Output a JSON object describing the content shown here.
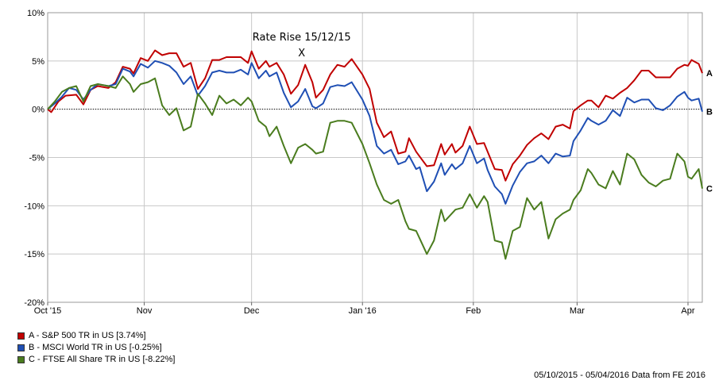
{
  "chart_data": {
    "type": "line",
    "ylim": [
      -20,
      10
    ],
    "yticks": [
      10,
      5,
      0,
      -5,
      -10,
      -15,
      -20
    ],
    "ytick_labels": [
      "10%",
      "5%",
      "0%",
      "-5%",
      "-10%",
      "-15%",
      "-20%"
    ],
    "xlim": [
      0,
      183
    ],
    "xticks": [
      {
        "label": "Oct '15",
        "t": 0
      },
      {
        "label": "Nov",
        "t": 27
      },
      {
        "label": "Dec",
        "t": 57
      },
      {
        "label": "Jan '16",
        "t": 88
      },
      {
        "label": "Feb",
        "t": 119
      },
      {
        "label": "Mar",
        "t": 148
      },
      {
        "label": "Apr",
        "t": 179
      }
    ],
    "grid": true,
    "zero_line": "dotted",
    "annotation": {
      "text": "Rate Rise 15/12/15",
      "marker": "X",
      "t": 71
    },
    "series": [
      {
        "name": "A - S&P 500 TR in US [3.74%]",
        "end_label": "A",
        "color": "#c00000",
        "points": [
          [
            0,
            0
          ],
          [
            1,
            -0.3
          ],
          [
            3,
            0.8
          ],
          [
            5,
            1.4
          ],
          [
            8,
            1.5
          ],
          [
            10,
            0.5
          ],
          [
            12,
            2.0
          ],
          [
            14,
            2.4
          ],
          [
            17,
            2.2
          ],
          [
            19,
            2.8
          ],
          [
            21,
            4.4
          ],
          [
            23,
            4.2
          ],
          [
            24,
            3.7
          ],
          [
            26,
            5.3
          ],
          [
            28,
            5.0
          ],
          [
            30,
            6.1
          ],
          [
            32,
            5.6
          ],
          [
            34,
            5.8
          ],
          [
            36,
            5.8
          ],
          [
            38,
            4.4
          ],
          [
            40,
            4.8
          ],
          [
            42,
            2.1
          ],
          [
            44,
            3.2
          ],
          [
            46,
            5.1
          ],
          [
            48,
            5.1
          ],
          [
            50,
            5.4
          ],
          [
            52,
            5.4
          ],
          [
            54,
            5.4
          ],
          [
            56,
            4.8
          ],
          [
            57,
            6.0
          ],
          [
            59,
            4.2
          ],
          [
            61,
            5.0
          ],
          [
            62,
            4.4
          ],
          [
            64,
            4.8
          ],
          [
            66,
            3.6
          ],
          [
            68,
            1.6
          ],
          [
            70,
            2.5
          ],
          [
            72,
            4.6
          ],
          [
            74,
            2.8
          ],
          [
            75,
            1.2
          ],
          [
            77,
            2.0
          ],
          [
            79,
            3.6
          ],
          [
            81,
            4.6
          ],
          [
            83,
            4.4
          ],
          [
            85,
            5.2
          ],
          [
            88,
            3.6
          ],
          [
            90,
            2.1
          ],
          [
            92,
            -1.4
          ],
          [
            94,
            -2.9
          ],
          [
            96,
            -2.3
          ],
          [
            98,
            -4.6
          ],
          [
            100,
            -4.4
          ],
          [
            101,
            -3.0
          ],
          [
            103,
            -4.4
          ],
          [
            104,
            -4.9
          ],
          [
            106,
            -5.9
          ],
          [
            108,
            -5.8
          ],
          [
            110,
            -3.6
          ],
          [
            111,
            -4.7
          ],
          [
            113,
            -3.6
          ],
          [
            114,
            -4.5
          ],
          [
            116,
            -3.8
          ],
          [
            118,
            -1.8
          ],
          [
            120,
            -3.6
          ],
          [
            122,
            -3.5
          ],
          [
            123,
            -4.4
          ],
          [
            125,
            -6.2
          ],
          [
            127,
            -6.3
          ],
          [
            128,
            -7.4
          ],
          [
            130,
            -5.7
          ],
          [
            132,
            -4.8
          ],
          [
            134,
            -3.7
          ],
          [
            136,
            -3.0
          ],
          [
            138,
            -2.5
          ],
          [
            140,
            -3.1
          ],
          [
            142,
            -1.8
          ],
          [
            144,
            -1.6
          ],
          [
            146,
            -2.0
          ],
          [
            147,
            -0.2
          ],
          [
            149,
            0.4
          ],
          [
            151,
            0.9
          ],
          [
            152,
            0.9
          ],
          [
            154,
            0.2
          ],
          [
            156,
            1.4
          ],
          [
            158,
            1.1
          ],
          [
            160,
            1.7
          ],
          [
            162,
            2.2
          ],
          [
            164,
            3.0
          ],
          [
            166,
            4.0
          ],
          [
            168,
            4.0
          ],
          [
            170,
            3.3
          ],
          [
            172,
            3.3
          ],
          [
            174,
            3.3
          ],
          [
            176,
            4.2
          ],
          [
            178,
            4.6
          ],
          [
            179,
            4.5
          ],
          [
            180,
            5.1
          ],
          [
            182,
            4.7
          ],
          [
            183,
            3.74
          ]
        ]
      },
      {
        "name": "B - MSCI World TR in US [-0.25%]",
        "end_label": "B",
        "color": "#1f4fb4",
        "points": [
          [
            0,
            0
          ],
          [
            2,
            0.6
          ],
          [
            4,
            1.3
          ],
          [
            6,
            2.2
          ],
          [
            8,
            2.0
          ],
          [
            10,
            1.0
          ],
          [
            12,
            2.0
          ],
          [
            14,
            2.6
          ],
          [
            17,
            2.4
          ],
          [
            19,
            2.6
          ],
          [
            21,
            4.2
          ],
          [
            23,
            3.9
          ],
          [
            24,
            3.4
          ],
          [
            26,
            4.7
          ],
          [
            28,
            4.3
          ],
          [
            30,
            5.0
          ],
          [
            32,
            4.8
          ],
          [
            34,
            4.5
          ],
          [
            36,
            3.8
          ],
          [
            38,
            2.6
          ],
          [
            40,
            3.4
          ],
          [
            42,
            1.4
          ],
          [
            44,
            2.4
          ],
          [
            46,
            3.8
          ],
          [
            48,
            4.0
          ],
          [
            50,
            3.8
          ],
          [
            52,
            3.8
          ],
          [
            54,
            4.1
          ],
          [
            56,
            3.6
          ],
          [
            57,
            4.8
          ],
          [
            59,
            3.2
          ],
          [
            61,
            4.0
          ],
          [
            62,
            3.4
          ],
          [
            64,
            3.8
          ],
          [
            66,
            1.7
          ],
          [
            68,
            0.2
          ],
          [
            70,
            0.8
          ],
          [
            72,
            2.1
          ],
          [
            74,
            0.3
          ],
          [
            75,
            0.1
          ],
          [
            77,
            0.6
          ],
          [
            79,
            2.3
          ],
          [
            81,
            2.5
          ],
          [
            83,
            2.4
          ],
          [
            85,
            2.8
          ],
          [
            88,
            1.0
          ],
          [
            90,
            -0.7
          ],
          [
            92,
            -3.8
          ],
          [
            94,
            -4.6
          ],
          [
            96,
            -4.2
          ],
          [
            98,
            -5.7
          ],
          [
            100,
            -5.4
          ],
          [
            101,
            -4.8
          ],
          [
            103,
            -6.2
          ],
          [
            104,
            -6.0
          ],
          [
            106,
            -8.5
          ],
          [
            108,
            -7.5
          ],
          [
            110,
            -5.6
          ],
          [
            111,
            -6.8
          ],
          [
            113,
            -5.7
          ],
          [
            114,
            -6.2
          ],
          [
            116,
            -5.6
          ],
          [
            118,
            -3.8
          ],
          [
            120,
            -5.6
          ],
          [
            122,
            -5.1
          ],
          [
            123,
            -6.3
          ],
          [
            125,
            -8.0
          ],
          [
            127,
            -8.8
          ],
          [
            128,
            -9.8
          ],
          [
            130,
            -7.9
          ],
          [
            132,
            -6.5
          ],
          [
            134,
            -5.6
          ],
          [
            136,
            -5.4
          ],
          [
            138,
            -4.8
          ],
          [
            140,
            -5.6
          ],
          [
            142,
            -4.6
          ],
          [
            144,
            -4.9
          ],
          [
            146,
            -4.8
          ],
          [
            147,
            -3.3
          ],
          [
            149,
            -2.2
          ],
          [
            151,
            -0.9
          ],
          [
            152,
            -1.2
          ],
          [
            154,
            -1.6
          ],
          [
            156,
            -1.2
          ],
          [
            158,
            -0.1
          ],
          [
            160,
            -0.7
          ],
          [
            162,
            1.2
          ],
          [
            164,
            0.7
          ],
          [
            166,
            1.0
          ],
          [
            168,
            1.0
          ],
          [
            170,
            0.1
          ],
          [
            172,
            -0.1
          ],
          [
            174,
            0.4
          ],
          [
            176,
            1.3
          ],
          [
            178,
            1.8
          ],
          [
            179,
            1.2
          ],
          [
            180,
            0.9
          ],
          [
            182,
            1.1
          ],
          [
            183,
            -0.25
          ]
        ]
      },
      {
        "name": "C - FTSE All Share TR in US [-8.22%]",
        "end_label": "C",
        "color": "#4a7c1e",
        "points": [
          [
            0,
            0
          ],
          [
            2,
            0.8
          ],
          [
            4,
            1.8
          ],
          [
            6,
            2.2
          ],
          [
            8,
            2.4
          ],
          [
            10,
            0.8
          ],
          [
            12,
            2.4
          ],
          [
            14,
            2.6
          ],
          [
            17,
            2.4
          ],
          [
            19,
            2.2
          ],
          [
            21,
            3.4
          ],
          [
            23,
            2.6
          ],
          [
            24,
            1.8
          ],
          [
            26,
            2.6
          ],
          [
            28,
            2.8
          ],
          [
            30,
            3.2
          ],
          [
            32,
            0.4
          ],
          [
            34,
            -0.6
          ],
          [
            36,
            0.1
          ],
          [
            38,
            -2.2
          ],
          [
            40,
            -1.8
          ],
          [
            42,
            1.6
          ],
          [
            44,
            0.6
          ],
          [
            46,
            -0.6
          ],
          [
            48,
            1.4
          ],
          [
            50,
            0.6
          ],
          [
            52,
            1.0
          ],
          [
            54,
            0.4
          ],
          [
            56,
            1.2
          ],
          [
            57,
            0.8
          ],
          [
            59,
            -1.2
          ],
          [
            61,
            -1.8
          ],
          [
            62,
            -2.8
          ],
          [
            64,
            -1.8
          ],
          [
            66,
            -3.8
          ],
          [
            68,
            -5.6
          ],
          [
            70,
            -4.0
          ],
          [
            72,
            -3.6
          ],
          [
            74,
            -4.2
          ],
          [
            75,
            -4.6
          ],
          [
            77,
            -4.4
          ],
          [
            79,
            -1.4
          ],
          [
            81,
            -1.2
          ],
          [
            83,
            -1.2
          ],
          [
            85,
            -1.4
          ],
          [
            88,
            -3.6
          ],
          [
            90,
            -5.6
          ],
          [
            92,
            -7.8
          ],
          [
            94,
            -9.4
          ],
          [
            96,
            -9.8
          ],
          [
            98,
            -9.4
          ],
          [
            100,
            -11.6
          ],
          [
            101,
            -12.4
          ],
          [
            103,
            -12.6
          ],
          [
            104,
            -13.4
          ],
          [
            106,
            -15.0
          ],
          [
            108,
            -13.6
          ],
          [
            110,
            -10.4
          ],
          [
            111,
            -11.6
          ],
          [
            113,
            -10.8
          ],
          [
            114,
            -10.4
          ],
          [
            116,
            -10.2
          ],
          [
            118,
            -8.8
          ],
          [
            120,
            -10.2
          ],
          [
            122,
            -9.0
          ],
          [
            123,
            -9.6
          ],
          [
            125,
            -13.6
          ],
          [
            127,
            -13.8
          ],
          [
            128,
            -15.5
          ],
          [
            130,
            -12.6
          ],
          [
            132,
            -12.2
          ],
          [
            134,
            -9.2
          ],
          [
            136,
            -10.4
          ],
          [
            138,
            -9.6
          ],
          [
            140,
            -13.4
          ],
          [
            142,
            -11.4
          ],
          [
            144,
            -10.8
          ],
          [
            146,
            -10.4
          ],
          [
            147,
            -9.4
          ],
          [
            149,
            -8.4
          ],
          [
            151,
            -6.2
          ],
          [
            152,
            -6.6
          ],
          [
            154,
            -7.8
          ],
          [
            156,
            -8.2
          ],
          [
            158,
            -6.4
          ],
          [
            160,
            -7.8
          ],
          [
            162,
            -4.6
          ],
          [
            164,
            -5.2
          ],
          [
            166,
            -6.8
          ],
          [
            168,
            -7.6
          ],
          [
            170,
            -8.0
          ],
          [
            172,
            -7.4
          ],
          [
            174,
            -7.2
          ],
          [
            176,
            -4.6
          ],
          [
            178,
            -5.4
          ],
          [
            179,
            -7.0
          ],
          [
            180,
            -7.2
          ],
          [
            182,
            -6.2
          ],
          [
            183,
            -8.22
          ]
        ]
      }
    ]
  },
  "source_note": "05/10/2015 - 05/04/2016 Data from FE 2016"
}
